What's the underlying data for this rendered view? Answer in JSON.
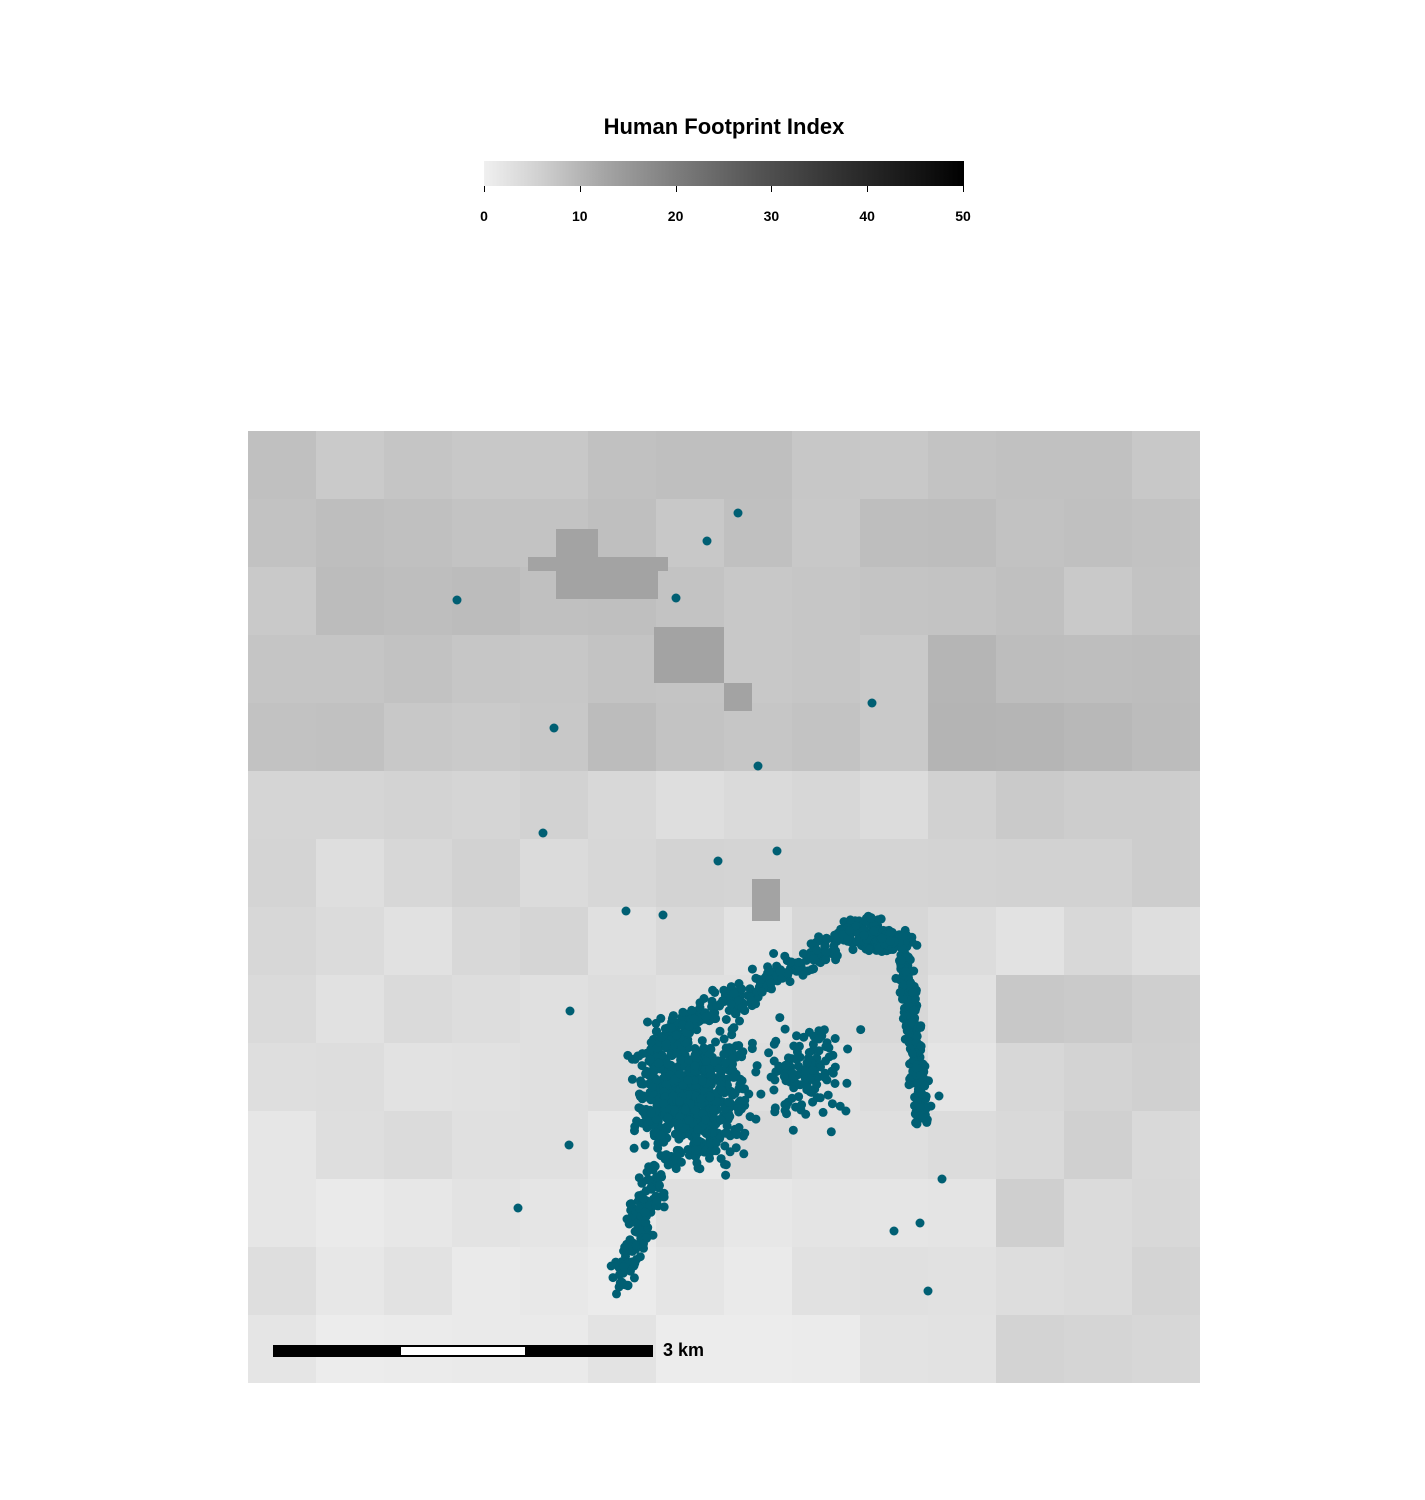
{
  "legend": {
    "title": "Human Footprint Index",
    "ticks": [
      "0",
      "10",
      "20",
      "30",
      "40",
      "50"
    ],
    "tick_values": [
      0,
      10,
      20,
      30,
      40,
      50
    ],
    "range": [
      0,
      50
    ],
    "colors": [
      "#f0f0f0",
      "#000000"
    ]
  },
  "map": {
    "point_color": "#005f73",
    "raster_low_color": "#f0f0f0",
    "raster_high_color": "#000000"
  },
  "scale_bar": {
    "label": "3 km"
  }
}
